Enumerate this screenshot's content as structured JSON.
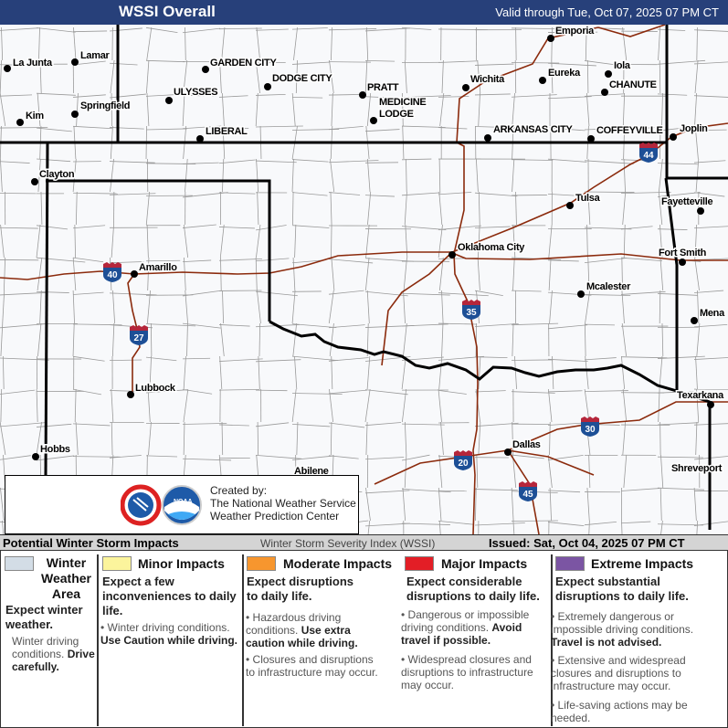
{
  "header": {
    "title": "WSSI Overall",
    "valid": "Valid through Tue, Oct 07, 2025 07 PM CT"
  },
  "map": {
    "colors": {
      "background": "#f8f9fb",
      "state_border": "#000000",
      "county_border": "#9a9a9a",
      "interstate": "#8b2a0c",
      "shield_top": "#b5263b",
      "shield_bottom": "#1d4f96"
    },
    "cities": [
      "La Junta",
      "Lamar",
      "Kim",
      "Springfield",
      "GARDEN CITY",
      "DODGE CITY",
      "ULYSSES",
      "LIBERAL",
      "PRATT",
      "MEDICINE",
      "LODGE",
      "Wichita",
      "Emporia",
      "Eureka",
      "Iola",
      "CHANUTE",
      "ARKANSAS CITY",
      "COFFEYVILLE",
      "Joplin",
      "Clayton",
      "Amarillo",
      "Lubbock",
      "Hobbs",
      "Abilene",
      "Tulsa",
      "Oklahoma City",
      "Fayetteville",
      "Fort Smith",
      "Mcalester",
      "Mena",
      "Texarkana",
      "Dallas",
      "Shreveport"
    ],
    "interstates": [
      "44",
      "40",
      "27",
      "35",
      "30",
      "20",
      "45"
    ]
  },
  "credits": {
    "line1": "Created by:",
    "line2": "The National Weather Service",
    "line3": "Weather Prediction Center",
    "logo_nws": "NATIONAL WEATHER SERVICE",
    "logo_noaa": "NOAA"
  },
  "footer": {
    "left": "Potential Winter Storm Impacts",
    "center": "Winter Storm Severity Index (WSSI)",
    "right": "Issued: Sat, Oct 04, 2025 07 PM CT"
  },
  "legend": [
    {
      "color": "#d3dde6",
      "title1": "Winter",
      "title2": "Weather",
      "title3": "Area",
      "lead": "Expect winter weather.",
      "bullets": [
        {
          "text": "Winter driving conditions.",
          "bold": "Drive carefully."
        }
      ]
    },
    {
      "color": "#fbf49c",
      "title": "Minor Impacts",
      "lead": "Expect a few inconveniences to daily life.",
      "bullets": [
        {
          "text": "Winter driving conditions.",
          "bold": "Use Caution while driving."
        }
      ]
    },
    {
      "color": "#f7962e",
      "title": "Moderate Impacts",
      "lead": "Expect disruptions to daily life.",
      "bullets": [
        {
          "text": "Hazardous driving conditions.",
          "bold": "Use extra caution while driving."
        },
        {
          "text": "Closures and disruptions to infrastructure may occur.",
          "bold": ""
        }
      ]
    },
    {
      "color": "#e31e26",
      "title": "Major Impacts",
      "lead": "Expect considerable disruptions to daily life.",
      "bullets": [
        {
          "text": "Dangerous or impossible driving conditions.",
          "bold": "Avoid travel if possible."
        },
        {
          "text": "Widespread closures and disruptions to infrastructure may occur.",
          "bold": ""
        }
      ]
    },
    {
      "color": "#7b55a3",
      "title": "Extreme Impacts",
      "lead": "Expect substantial disruptions to daily life.",
      "bullets": [
        {
          "text": "Extremely dangerous or impossible driving conditions.",
          "bold": "Travel is not advised."
        },
        {
          "text": "Extensive and widespread closures and disruptions to infrastructure may occur.",
          "bold": ""
        },
        {
          "text": "Life-saving actions may be needed.",
          "bold": ""
        }
      ]
    }
  ]
}
